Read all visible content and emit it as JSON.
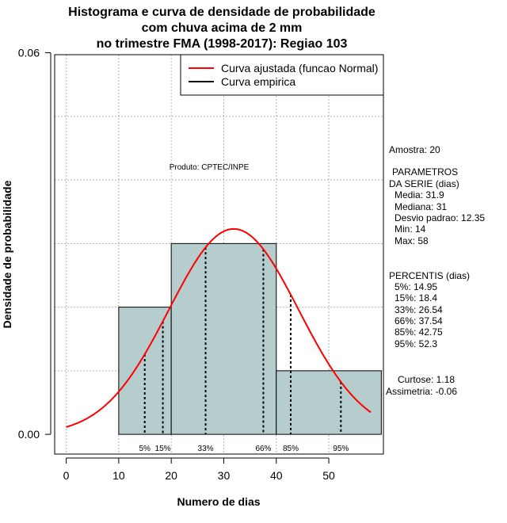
{
  "title_lines": [
    "Histograma e curva de densidade de probabilidade",
    "com chuva acima de 2 mm",
    "no trimestre FMA (1998-2017): Regiao 103"
  ],
  "watermark": "Produto: CPTEC/INPE",
  "legend": {
    "fitted": "Curva ajustada (funcao Normal)",
    "empirical": "Curva empirica"
  },
  "side_panel": {
    "amostra": "Amostra: 20",
    "param_title_1": "PARAMETROS",
    "param_title_2": "DA SERIE (dias)",
    "media": "Media: 31.9",
    "mediana": "Mediana: 31",
    "desvio": "Desvio padrao: 12.35",
    "min": "Min: 14",
    "max": "Max: 58",
    "perc_title": "PERCENTIS (dias)",
    "p5": "5%: 14.95",
    "p15": "15%: 18.4",
    "p33": "33%: 26.54",
    "p66": "66%: 37.54",
    "p85": "85%: 42.75",
    "p95": "95%: 52.3",
    "curtose": "Curtose: 1.18",
    "assimetria": "Assimetria: -0.06"
  },
  "colors": {
    "bar_fill": "#b5cdcd",
    "fitted_curve": "#ff0000",
    "empirical": "#000000",
    "grid": "#bebebe"
  },
  "chart_data": {
    "type": "bar",
    "xlabel": "Numero de dias",
    "ylabel": "Densidade de probabilidade",
    "xlim": [
      -2.2,
      60.4
    ],
    "ylim": [
      -0.0031,
      0.0597
    ],
    "xticks": [
      0,
      10,
      20,
      30,
      40,
      50
    ],
    "yticks": [
      0.0,
      0.06
    ],
    "ytick_labels": [
      "0.00",
      "0.06"
    ],
    "grid": true,
    "legend_position": "top-right",
    "bins": [
      {
        "from": 10,
        "to": 20,
        "density": 0.02
      },
      {
        "from": 20,
        "to": 40,
        "density": 0.03
      },
      {
        "from": 40,
        "to": 60,
        "density": 0.01
      }
    ],
    "normal_fit": {
      "mean": 31.9,
      "sd": 12.35,
      "x_from": 0,
      "x_to": 58
    },
    "percentiles": [
      {
        "label": "5%",
        "value": 14.95
      },
      {
        "label": "15%",
        "value": 18.4
      },
      {
        "label": "33%",
        "value": 26.54
      },
      {
        "label": "66%",
        "value": 37.54
      },
      {
        "label": "85%",
        "value": 42.75
      },
      {
        "label": "95%",
        "value": 52.3
      }
    ]
  }
}
